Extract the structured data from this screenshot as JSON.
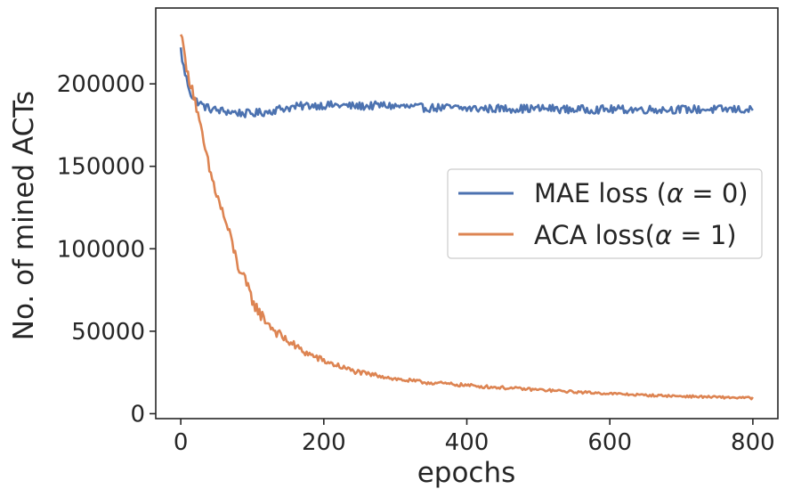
{
  "chart_data": {
    "type": "line",
    "title": "",
    "xlabel": "epochs",
    "ylabel": "No. of mined ACTs",
    "xlim": [
      -35,
      835
    ],
    "ylim": [
      -3000,
      246000
    ],
    "xticks": [
      0,
      200,
      400,
      600,
      800
    ],
    "xtick_labels": [
      "0",
      "200",
      "400",
      "600",
      "800"
    ],
    "yticks": [
      0,
      50000,
      100000,
      150000,
      200000
    ],
    "ytick_labels": [
      "0",
      "50000",
      "100000",
      "150000",
      "200000"
    ],
    "grid": false,
    "legend_position": "center-right",
    "series": [
      {
        "name": "MAE loss (α = 0)",
        "legend_prefix": "MAE loss (",
        "legend_var": "α",
        "legend_suffix": " = 0)",
        "color": "#4c72b0",
        "x": [
          0,
          3,
          6,
          10,
          15,
          20,
          25,
          30,
          35,
          40,
          50,
          60,
          70,
          80,
          90,
          100,
          110,
          120,
          130,
          140,
          150,
          160,
          170,
          180,
          200,
          220,
          240,
          260,
          280,
          300,
          320,
          340,
          360,
          380,
          400,
          420,
          440,
          460,
          480,
          500,
          520,
          540,
          560,
          580,
          600,
          620,
          640,
          660,
          680,
          700,
          720,
          740,
          760,
          780,
          800
        ],
        "values": [
          221000,
          212000,
          206000,
          200000,
          193000,
          190000,
          189000,
          187000,
          186000,
          185000,
          184000,
          183500,
          183000,
          182500,
          182000,
          182000,
          182500,
          183000,
          184000,
          185000,
          185500,
          186000,
          186500,
          187000,
          187000,
          187000,
          186500,
          186500,
          187000,
          186500,
          186000,
          185500,
          185500,
          185500,
          185000,
          185000,
          185000,
          185000,
          185000,
          185000,
          185000,
          184500,
          184500,
          184500,
          184500,
          184500,
          184500,
          184500,
          184500,
          184500,
          184500,
          184500,
          184500,
          184500,
          184000
        ],
        "noise": 2500,
        "step": 2
      },
      {
        "name": "ACA loss(α = 1)",
        "legend_prefix": "ACA loss(",
        "legend_var": "α",
        "legend_suffix": " = 1)",
        "color": "#dd8452",
        "x": [
          0,
          2,
          4,
          6,
          8,
          10,
          15,
          20,
          25,
          30,
          35,
          40,
          50,
          60,
          70,
          80,
          90,
          100,
          110,
          120,
          130,
          140,
          150,
          160,
          170,
          180,
          190,
          200,
          220,
          240,
          260,
          280,
          300,
          320,
          340,
          360,
          380,
          400,
          420,
          440,
          460,
          480,
          500,
          550,
          600,
          650,
          700,
          750,
          800
        ],
        "values": [
          228000,
          232000,
          225000,
          213000,
          208000,
          205000,
          200000,
          190000,
          178000,
          168000,
          158000,
          148000,
          133000,
          120000,
          106000,
          90000,
          80000,
          69000,
          61000,
          56000,
          51000,
          47000,
          44000,
          41000,
          38000,
          36000,
          34000,
          32000,
          29000,
          26000,
          24000,
          23000,
          21000,
          20000,
          19000,
          18500,
          17800,
          17200,
          16500,
          16000,
          15500,
          15000,
          14500,
          13200,
          12200,
          11200,
          10600,
          10000,
          9500
        ],
        "noise": 2400,
        "step": 2
      }
    ]
  }
}
